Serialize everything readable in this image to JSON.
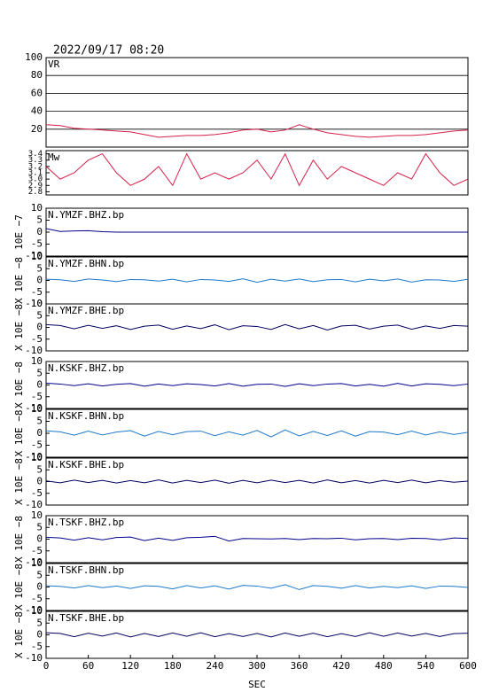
{
  "chart_data": [
    {
      "type": "line",
      "title": "2022/09/17 08:20",
      "x": [
        0,
        20,
        40,
        60,
        80,
        100,
        120,
        140,
        160,
        180,
        200,
        220,
        240,
        260,
        280,
        300,
        320,
        340,
        360,
        380,
        400,
        420,
        440,
        460,
        480,
        500,
        520,
        540,
        560,
        580,
        600
      ],
      "xlim": [
        0,
        600
      ],
      "ylim": [
        0,
        100
      ],
      "yticks": [
        20,
        40,
        60,
        80,
        100
      ],
      "grid": true,
      "series": [
        {
          "name": "VR",
          "color": "#d6204a",
          "values": [
            25,
            24,
            21,
            20,
            19,
            18,
            17,
            14,
            11,
            12,
            13,
            13,
            14,
            16,
            19,
            20,
            17,
            19,
            25,
            20,
            16,
            14,
            12,
            11,
            12,
            13,
            13,
            14,
            16,
            18,
            19
          ]
        }
      ]
    },
    {
      "type": "line",
      "x": [
        0,
        20,
        40,
        60,
        80,
        100,
        120,
        140,
        160,
        180,
        200,
        220,
        240,
        260,
        280,
        300,
        320,
        340,
        360,
        380,
        400,
        420,
        440,
        460,
        480,
        500,
        520,
        540,
        560,
        580,
        600
      ],
      "xlim": [
        0,
        600
      ],
      "ylim": [
        2.75,
        3.45
      ],
      "yticks": [
        2.8,
        2.9,
        {
          "value": 3,
          "label": "3.0"
        },
        3.1,
        3.2,
        3.3,
        3.4
      ],
      "series": [
        {
          "name": "Mw",
          "color": "#d6204a",
          "values": [
            3.2,
            3.0,
            3.1,
            3.3,
            3.4,
            3.1,
            2.9,
            3.0,
            3.2,
            2.9,
            3.4,
            3.0,
            3.1,
            3.0,
            3.1,
            3.3,
            3.0,
            3.4,
            2.9,
            3.3,
            3.0,
            3.2,
            3.1,
            3.0,
            2.9,
            3.1,
            3.0,
            3.4,
            3.1,
            2.9,
            3.0
          ]
        }
      ]
    },
    {
      "type": "line",
      "ylabel": "10E −7",
      "x": [
        0,
        20,
        40,
        60,
        80,
        100,
        120,
        140,
        160,
        180,
        200,
        220,
        240,
        260,
        280,
        300,
        320,
        340,
        360,
        380,
        400,
        420,
        440,
        460,
        480,
        500,
        520,
        540,
        560,
        580,
        600
      ],
      "xlim": [
        0,
        600
      ],
      "ylim": [
        -10,
        10
      ],
      "yticks": [
        -10,
        -5,
        0,
        5,
        10
      ],
      "series": [
        {
          "name": "N.YMZF.BHZ.bp",
          "color": "#00008b",
          "values": [
            1.5,
            0.3,
            0.5,
            0.6,
            0.2,
            0,
            0,
            0,
            0,
            0,
            0,
            0,
            0,
            0,
            0,
            0,
            0,
            0,
            0,
            0,
            0,
            0,
            0,
            0,
            0,
            0,
            0,
            0,
            0,
            0,
            0
          ]
        }
      ]
    },
    {
      "type": "line",
      "ylabel": "X 10E −8",
      "x": [
        0,
        20,
        40,
        60,
        80,
        100,
        120,
        140,
        160,
        180,
        200,
        220,
        240,
        260,
        280,
        300,
        320,
        340,
        360,
        380,
        400,
        420,
        440,
        460,
        480,
        500,
        520,
        540,
        560,
        580,
        600
      ],
      "xlim": [
        0,
        600
      ],
      "ylim": [
        -10,
        10
      ],
      "yticks": [
        -10,
        -5,
        0,
        5,
        10
      ],
      "series": [
        {
          "name": "N.YMZF.BHN.bp",
          "color": "#1e78c8",
          "values": [
            0.5,
            0.3,
            -0.4,
            0.6,
            0.2,
            -0.5,
            0.4,
            0.3,
            -0.3,
            0.5,
            -0.6,
            0.4,
            0.2,
            -0.4,
            0.7,
            -0.8,
            0.5,
            -0.3,
            0.6,
            -0.5,
            0.3,
            0.4,
            -0.6,
            0.5,
            -0.2,
            0.6,
            -0.7,
            0.3,
            0.2,
            -0.4,
            0.5
          ]
        }
      ]
    },
    {
      "type": "line",
      "ylabel": "X 10E −8",
      "x": [
        0,
        20,
        40,
        60,
        80,
        100,
        120,
        140,
        160,
        180,
        200,
        220,
        240,
        260,
        280,
        300,
        320,
        340,
        360,
        380,
        400,
        420,
        440,
        460,
        480,
        500,
        520,
        540,
        560,
        580,
        600
      ],
      "xlim": [
        0,
        600
      ],
      "ylim": [
        -10,
        10
      ],
      "yticks": [
        -10,
        -5,
        0,
        5,
        10
      ],
      "series": [
        {
          "name": "N.YMZF.BHE.bp",
          "color": "#000060",
          "values": [
            1.2,
            0.8,
            -0.6,
            0.9,
            -0.4,
            0.7,
            -0.9,
            0.5,
            1.0,
            -0.8,
            0.6,
            -0.5,
            1.1,
            -1.0,
            0.7,
            0.4,
            -0.9,
            1.2,
            -0.6,
            0.8,
            -1.1,
            0.6,
            0.9,
            -0.7,
            0.5,
            1.0,
            -0.8,
            0.6,
            -0.4,
            0.8,
            0.5
          ]
        }
      ]
    },
    {
      "type": "line",
      "ylabel": "X 10E −8",
      "x": [
        0,
        20,
        40,
        60,
        80,
        100,
        120,
        140,
        160,
        180,
        200,
        220,
        240,
        260,
        280,
        300,
        320,
        340,
        360,
        380,
        400,
        420,
        440,
        460,
        480,
        500,
        520,
        540,
        560,
        580,
        600
      ],
      "xlim": [
        0,
        600
      ],
      "ylim": [
        -10,
        10
      ],
      "yticks": [
        -10,
        -5,
        0,
        5,
        10
      ],
      "series": [
        {
          "name": "N.KSKF.BHZ.bp",
          "color": "#00008b",
          "values": [
            0.8,
            0.4,
            -0.3,
            0.5,
            -0.4,
            0.3,
            0.6,
            -0.5,
            0.4,
            -0.3,
            0.5,
            0.2,
            -0.4,
            0.6,
            -0.5,
            0.3,
            0.4,
            -0.6,
            0.5,
            -0.3,
            0.4,
            0.6,
            -0.4,
            0.3,
            -0.5,
            0.7,
            -0.4,
            0.5,
            0.3,
            -0.3,
            0.4
          ]
        }
      ]
    },
    {
      "type": "line",
      "ylabel": "X 10E −8",
      "x": [
        0,
        20,
        40,
        60,
        80,
        100,
        120,
        140,
        160,
        180,
        200,
        220,
        240,
        260,
        280,
        300,
        320,
        340,
        360,
        380,
        400,
        420,
        440,
        460,
        480,
        500,
        520,
        540,
        560,
        580,
        600
      ],
      "xlim": [
        0,
        600
      ],
      "ylim": [
        -10,
        10
      ],
      "yticks": [
        -10,
        -5,
        0,
        5,
        10
      ],
      "series": [
        {
          "name": "N.KSKF.BHN.bp",
          "color": "#1e78c8",
          "values": [
            1.0,
            0.6,
            -0.8,
            0.9,
            -0.7,
            0.5,
            1.1,
            -1.2,
            0.8,
            -0.6,
            0.7,
            0.9,
            -1.0,
            0.6,
            -0.8,
            1.2,
            -1.5,
            1.4,
            -1.1,
            0.8,
            -0.9,
            1.0,
            -1.2,
            0.7,
            0.5,
            -0.6,
            0.9,
            -0.7,
            0.6,
            -0.5,
            0.4
          ]
        }
      ]
    },
    {
      "type": "line",
      "ylabel": "X 10E −8",
      "x": [
        0,
        20,
        40,
        60,
        80,
        100,
        120,
        140,
        160,
        180,
        200,
        220,
        240,
        260,
        280,
        300,
        320,
        340,
        360,
        380,
        400,
        420,
        440,
        460,
        480,
        500,
        520,
        540,
        560,
        580,
        600
      ],
      "xlim": [
        0,
        600
      ],
      "ylim": [
        -10,
        10
      ],
      "yticks": [
        -10,
        -5,
        0,
        5,
        10
      ],
      "series": [
        {
          "name": "N.KSKF.BHE.bp",
          "color": "#000060",
          "values": [
            0.3,
            -0.5,
            0.6,
            -0.4,
            0.5,
            -0.6,
            0.4,
            -0.5,
            0.7,
            -0.6,
            0.5,
            -0.4,
            0.6,
            -0.7,
            0.5,
            -0.5,
            0.6,
            -0.4,
            0.5,
            -0.6,
            0.7,
            -0.5,
            0.4,
            -0.6,
            0.5,
            -0.4,
            0.6,
            -0.5,
            0.4,
            -0.3,
            0.2
          ]
        }
      ]
    },
    {
      "type": "line",
      "ylabel": "X 10E −8",
      "x": [
        0,
        20,
        40,
        60,
        80,
        100,
        120,
        140,
        160,
        180,
        200,
        220,
        240,
        260,
        280,
        300,
        320,
        340,
        360,
        380,
        400,
        420,
        440,
        460,
        480,
        500,
        520,
        540,
        560,
        580,
        600
      ],
      "xlim": [
        0,
        600
      ],
      "ylim": [
        -10,
        10
      ],
      "yticks": [
        -10,
        -5,
        0,
        5,
        10
      ],
      "series": [
        {
          "name": "N.TSKF.BHZ.bp",
          "color": "#00008b",
          "values": [
            0.8,
            0.5,
            -0.4,
            0.6,
            -0.3,
            0.7,
            0.9,
            -0.6,
            0.4,
            -0.5,
            0.6,
            0.8,
            1.2,
            -0.8,
            0.3,
            0.2,
            0.1,
            0.3,
            -0.2,
            0.3,
            0.2,
            0.4,
            -0.3,
            0.2,
            0.3,
            -0.2,
            0.4,
            0.3,
            -0.3,
            0.5,
            0.3
          ]
        }
      ]
    },
    {
      "type": "line",
      "ylabel": "X 10E −8",
      "x": [
        0,
        20,
        40,
        60,
        80,
        100,
        120,
        140,
        160,
        180,
        200,
        220,
        240,
        260,
        280,
        300,
        320,
        340,
        360,
        380,
        400,
        420,
        440,
        460,
        480,
        500,
        520,
        540,
        560,
        580,
        600
      ],
      "xlim": [
        0,
        600
      ],
      "ylim": [
        -10,
        10
      ],
      "yticks": [
        -10,
        -5,
        0,
        5,
        10
      ],
      "series": [
        {
          "name": "N.TSKF.BHN.bp",
          "color": "#1e78c8",
          "values": [
            0.5,
            0.3,
            -0.4,
            0.6,
            -0.3,
            0.4,
            -0.6,
            0.5,
            0.3,
            -0.8,
            0.6,
            -0.4,
            0.5,
            -0.9,
            0.7,
            0.4,
            -0.5,
            1.0,
            -1.1,
            0.6,
            0.3,
            -0.5,
            0.6,
            -0.4,
            0.3,
            -0.3,
            0.5,
            -0.6,
            0.4,
            0.3,
            -0.2
          ]
        }
      ]
    },
    {
      "type": "line",
      "ylabel": "X 10E −8",
      "xlabel": "SEC",
      "x": [
        0,
        20,
        40,
        60,
        80,
        100,
        120,
        140,
        160,
        180,
        200,
        220,
        240,
        260,
        280,
        300,
        320,
        340,
        360,
        380,
        400,
        420,
        440,
        460,
        480,
        500,
        520,
        540,
        560,
        580,
        600
      ],
      "xlim": [
        0,
        600
      ],
      "xticks": [
        0,
        60,
        120,
        180,
        240,
        300,
        360,
        420,
        480,
        540,
        600
      ],
      "ylim": [
        -10,
        10
      ],
      "yticks": [
        -10,
        -5,
        0,
        5,
        10
      ],
      "series": [
        {
          "name": "N.TSKF.BHE.bp",
          "color": "#000060",
          "values": [
            0.9,
            0.6,
            -0.8,
            0.7,
            -0.5,
            0.8,
            -0.9,
            0.6,
            -0.7,
            0.8,
            -0.6,
            0.9,
            -0.8,
            0.5,
            -0.7,
            0.6,
            -0.9,
            0.8,
            -0.6,
            0.7,
            -0.8,
            0.5,
            -0.7,
            0.9,
            -0.6,
            0.8,
            -0.5,
            0.6,
            -0.7,
            0.5,
            0.7
          ]
        }
      ]
    }
  ]
}
